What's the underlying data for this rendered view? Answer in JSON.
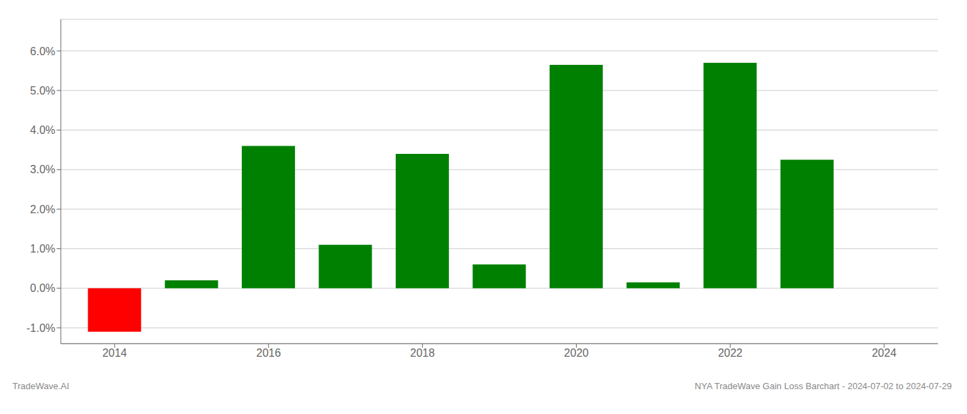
{
  "chart_data": {
    "type": "bar",
    "title": "NYA TradeWave Gain Loss Barchart - 2024-07-02 to 2024-07-29",
    "annotations": [
      "TradeWave.AI"
    ],
    "x": [
      2014,
      2015,
      2016,
      2017,
      2018,
      2019,
      2020,
      2021,
      2022,
      2023
    ],
    "values": [
      -0.011,
      0.002,
      0.036,
      0.011,
      0.034,
      0.006,
      0.0565,
      0.0015,
      0.057,
      0.0325
    ],
    "colors": [
      "#ff0000",
      "#008000",
      "#008000",
      "#008000",
      "#008000",
      "#008000",
      "#008000",
      "#008000",
      "#008000",
      "#008000"
    ],
    "xlim": [
      2013.3,
      2024.7
    ],
    "xticks": [
      2014,
      2016,
      2018,
      2020,
      2022,
      2024
    ],
    "ylim": [
      -0.014,
      0.068
    ],
    "yticks": [
      {
        "value": -0.01,
        "label": "-1.0%"
      },
      {
        "value": 0.0,
        "label": "0.0%"
      },
      {
        "value": 0.01,
        "label": "1.0%"
      },
      {
        "value": 0.02,
        "label": "2.0%"
      },
      {
        "value": 0.03,
        "label": "3.0%"
      },
      {
        "value": 0.04,
        "label": "4.0%"
      },
      {
        "value": 0.05,
        "label": "5.0%"
      },
      {
        "value": 0.06,
        "label": "6.0%"
      }
    ],
    "grid": "y"
  }
}
